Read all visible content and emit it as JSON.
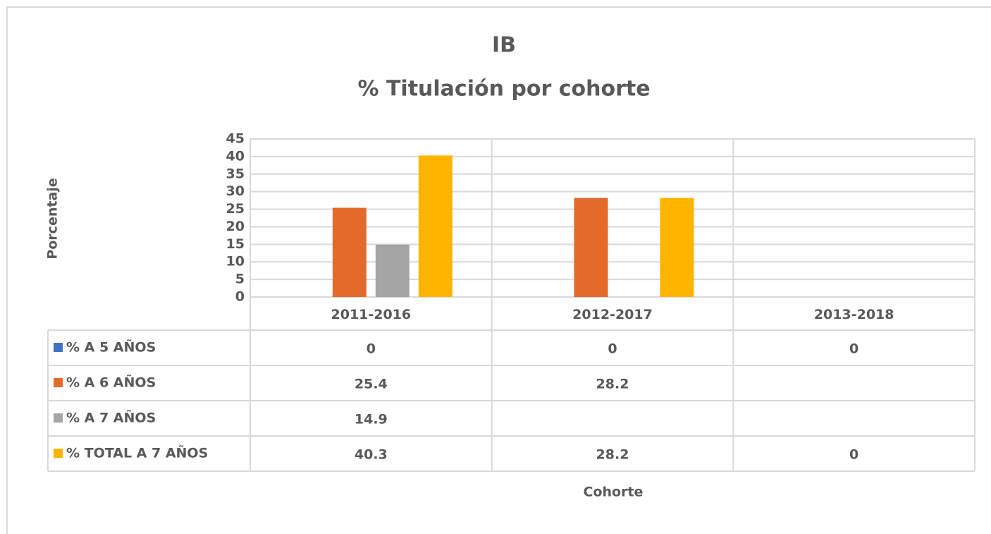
{
  "chart_data": {
    "type": "bar",
    "title": "IB",
    "subtitle": "% Titulación por cohorte",
    "y_label": "Porcentaje",
    "x_label": "Cohorte",
    "categories": [
      "2011-2016",
      "2012-2017",
      "2013-2018"
    ],
    "series": [
      {
        "name": "% A 5 AÑOS",
        "color": "#4472c4",
        "values": [
          0,
          0,
          0
        ]
      },
      {
        "name": "% A 6 AÑOS",
        "color": "#e46a2a",
        "values": [
          25.4,
          28.2,
          null
        ]
      },
      {
        "name": "% A 7 AÑOS",
        "color": "#a5a5a5",
        "values": [
          14.9,
          null,
          null
        ]
      },
      {
        "name": "% TOTAL A 7 AÑOS",
        "color": "#ffb400",
        "values": [
          40.3,
          28.2,
          0
        ]
      }
    ],
    "ylim": [
      0,
      45
    ],
    "yticks": [
      0,
      5,
      10,
      15,
      20,
      25,
      30,
      35,
      40,
      45
    ],
    "grid": true
  }
}
